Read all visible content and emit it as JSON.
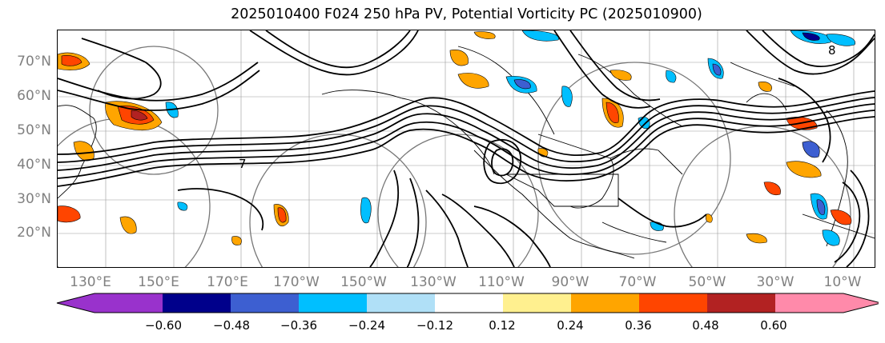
{
  "figure": {
    "title": "2025010400 F024 250 hPa PV, Potential Vorticity PC (2025010900)"
  },
  "axes": {
    "lat_labels": [
      "70°N",
      "60°N",
      "50°N",
      "40°N",
      "30°N",
      "20°N"
    ],
    "lon_labels": [
      "130°E",
      "150°E",
      "170°E",
      "170°W",
      "150°W",
      "130°W",
      "110°W",
      "90°W",
      "70°W",
      "50°W",
      "30°W",
      "10°W"
    ],
    "contour_labels": [
      "7",
      "8"
    ]
  },
  "colorbar": {
    "colors": [
      "#9932cc",
      "#00008b",
      "#3d5fd1",
      "#00bfff",
      "#b0e0f7",
      "#ffffff",
      "#fff08f",
      "#ffa500",
      "#ff4500",
      "#b22222",
      "#ff8aaa"
    ],
    "tick_labels": [
      "−0.60",
      "−0.48",
      "−0.36",
      "−0.24",
      "−0.12",
      "0.12",
      "0.24",
      "0.36",
      "0.48",
      "0.60"
    ]
  }
}
